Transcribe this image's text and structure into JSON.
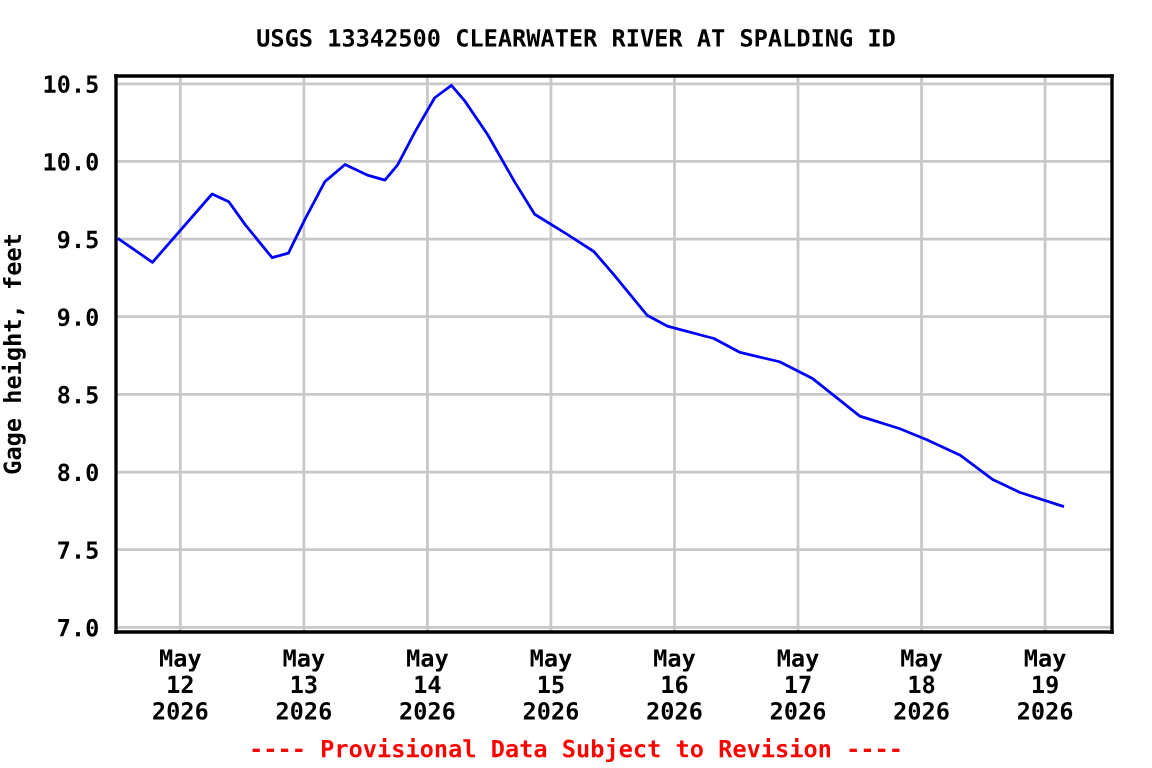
{
  "chart_data": {
    "type": "line",
    "title": "USGS 13342500 CLEARWATER RIVER AT SPALDING ID",
    "ylabel": "Gage height, feet",
    "annotations": [
      "---- Provisional Data Subject to Revision ----"
    ],
    "x": [
      "2026-05-11T12:05",
      "2026-05-11T18:35",
      "2026-05-12T06:10",
      "2026-05-12T09:25",
      "2026-05-12T12:40",
      "2026-05-12T17:50",
      "2026-05-12T21:00",
      "2026-05-13T00:15",
      "2026-05-13T04:05",
      "2026-05-13T08:00",
      "2026-05-13T12:30",
      "2026-05-13T15:45",
      "2026-05-13T18:15",
      "2026-05-13T21:35",
      "2026-05-14T01:25",
      "2026-05-14T04:40",
      "2026-05-14T07:15",
      "2026-05-14T11:45",
      "2026-05-14T16:55",
      "2026-05-14T20:50",
      "2026-05-15T03:10",
      "2026-05-15T08:20",
      "2026-05-15T12:15",
      "2026-05-15T18:40",
      "2026-05-15T22:35",
      "2026-05-16T07:40",
      "2026-05-16T12:45",
      "2026-05-16T20:25",
      "2026-05-17T02:55",
      "2026-05-17T12:00",
      "2026-05-17T19:40",
      "2026-05-18T00:55",
      "2026-05-18T07:25",
      "2026-05-18T13:55",
      "2026-05-18T19:00",
      "2026-05-19T03:25"
    ],
    "series": [
      {
        "color": "#0000ff",
        "values": [
          9.5,
          9.35,
          9.79,
          9.74,
          9.59,
          9.38,
          9.41,
          9.63,
          9.87,
          9.98,
          9.91,
          9.88,
          9.98,
          10.19,
          10.41,
          10.49,
          10.39,
          10.17,
          9.87,
          9.66,
          9.53,
          9.42,
          9.27,
          9.01,
          8.94,
          8.86,
          8.77,
          8.71,
          8.6,
          8.36,
          8.28,
          8.21,
          8.11,
          7.95,
          7.87,
          7.78
        ]
      }
    ],
    "xlim": [
      "2026-05-11T11:30",
      "2026-05-19T13:00"
    ],
    "xticks": [
      {
        "value": "2026-05-12",
        "label": "May\n12\n2026"
      },
      {
        "value": "2026-05-13",
        "label": "May\n13\n2026"
      },
      {
        "value": "2026-05-14",
        "label": "May\n14\n2026"
      },
      {
        "value": "2026-05-15",
        "label": "May\n15\n2026"
      },
      {
        "value": "2026-05-16",
        "label": "May\n16\n2026"
      },
      {
        "value": "2026-05-17",
        "label": "May\n17\n2026"
      },
      {
        "value": "2026-05-18",
        "label": "May\n18\n2026"
      },
      {
        "value": "2026-05-19",
        "label": "May\n19\n2026"
      }
    ],
    "ylim": [
      6.97,
      10.55
    ],
    "yticks": [
      {
        "value": 7.0,
        "label": "7.0"
      },
      {
        "value": 7.5,
        "label": "7.5"
      },
      {
        "value": 8.0,
        "label": "8.0"
      },
      {
        "value": 8.5,
        "label": "8.5"
      },
      {
        "value": 9.0,
        "label": "9.0"
      },
      {
        "value": 9.5,
        "label": "9.5"
      },
      {
        "value": 10.0,
        "label": "10.0"
      },
      {
        "value": 10.5,
        "label": "10.5"
      }
    ],
    "grid": true,
    "marker": "none",
    "line_style": "solid"
  }
}
